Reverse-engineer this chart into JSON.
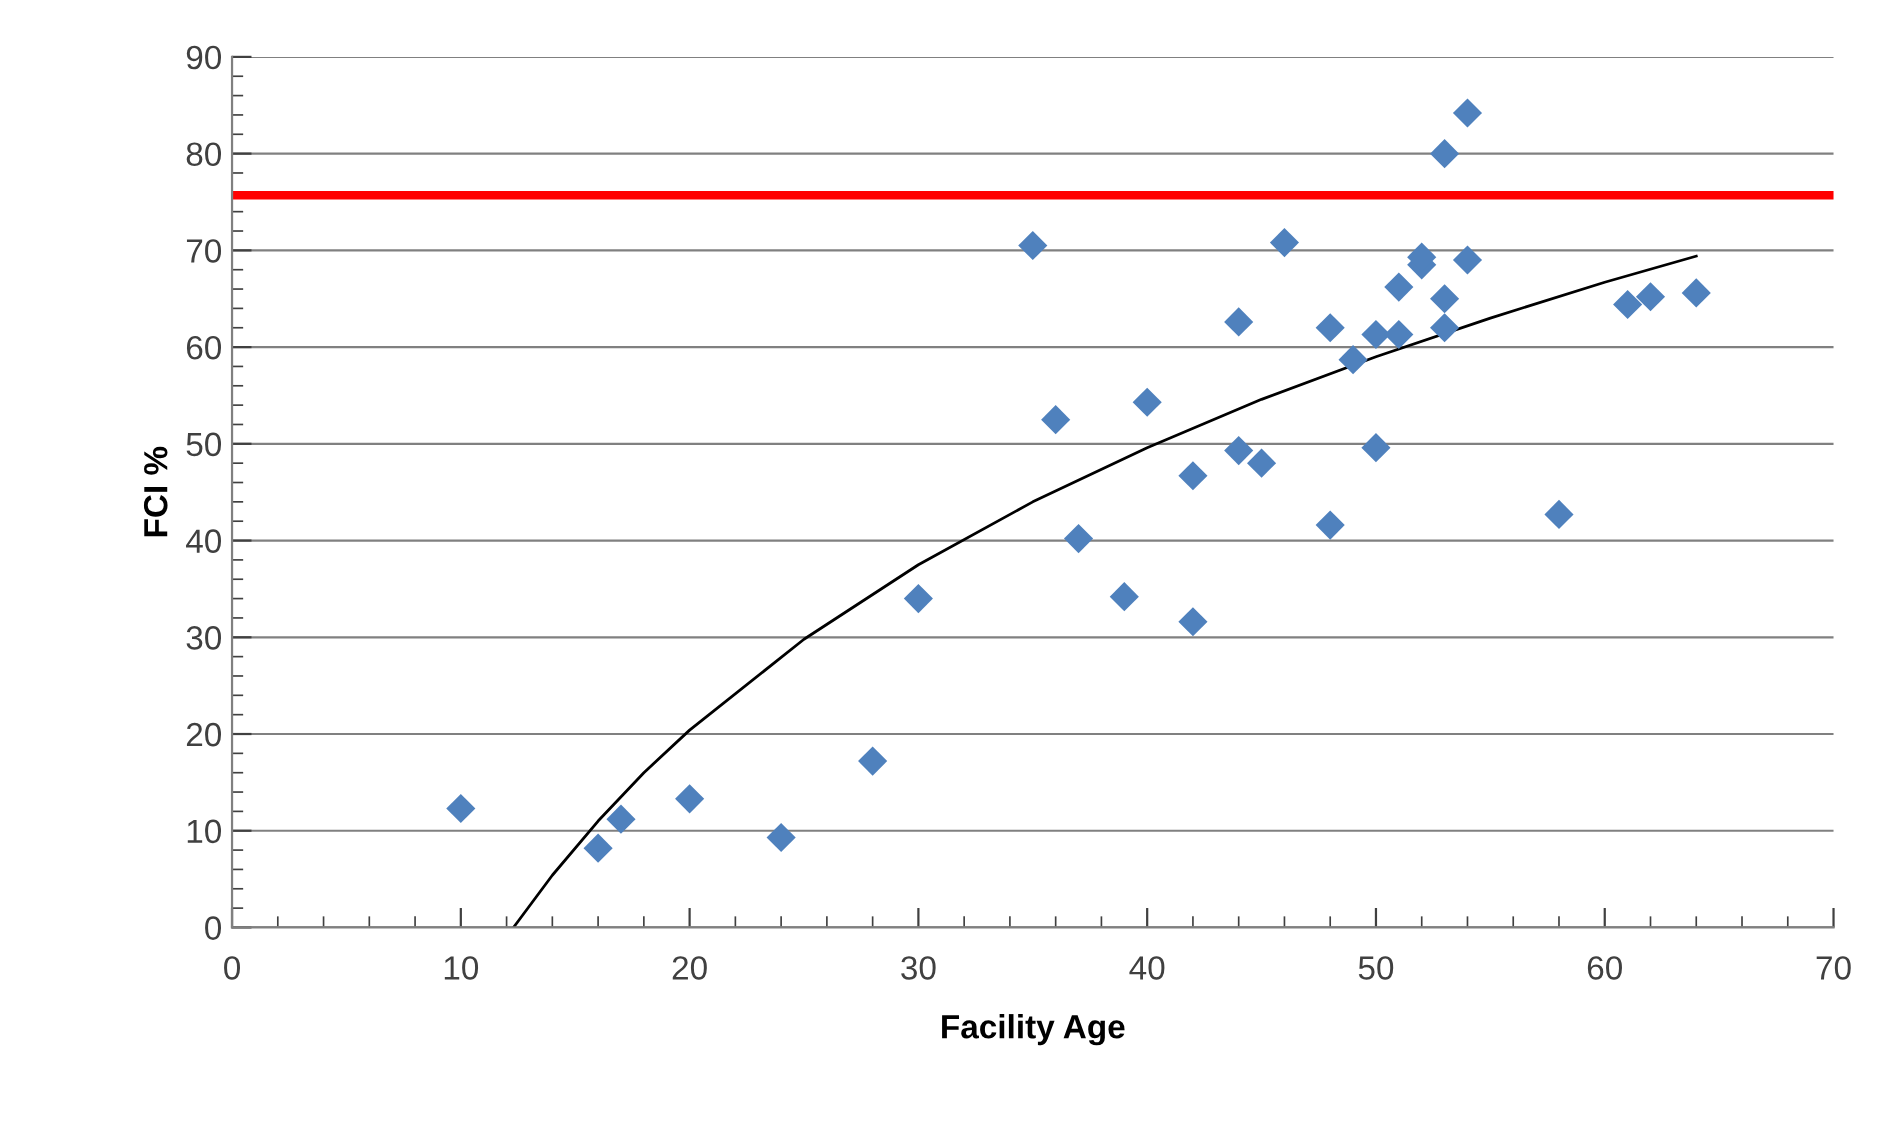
{
  "chart_data": {
    "type": "scatter",
    "xlabel": "Facility Age",
    "ylabel": "FCI %",
    "xlim": [
      0,
      70
    ],
    "xticks": [
      0,
      10,
      20,
      30,
      40,
      50,
      60,
      70
    ],
    "ylim": [
      0,
      90
    ],
    "yticks": [
      0,
      10,
      20,
      30,
      40,
      50,
      60,
      70,
      80,
      90
    ],
    "grid": "y",
    "legend": false,
    "marker": "diamond",
    "series": [
      {
        "color": "#4f81bd",
        "x": [
          10,
          16,
          17,
          20,
          24,
          28,
          30,
          35,
          36,
          37,
          39,
          40,
          42,
          42,
          44,
          44,
          45,
          46,
          48,
          48,
          49,
          50,
          50,
          51,
          51,
          52,
          52,
          53,
          53,
          53,
          54,
          54,
          58,
          61,
          62,
          64
        ],
        "values": [
          12.3,
          8.2,
          11.2,
          13.3,
          9.3,
          17.2,
          34,
          70.5,
          52.5,
          40.2,
          34.2,
          54.3,
          46.7,
          31.6,
          62.6,
          49.3,
          48,
          70.8,
          62,
          41.6,
          58.7,
          61.3,
          49.6,
          66.2,
          61.3,
          68.5,
          69.3,
          80,
          65,
          62,
          84.2,
          69,
          42.7,
          64.4,
          65.2,
          65.6
        ]
      },
      {
        "type": "line",
        "color": "#000000",
        "marker": "none",
        "x": [
          12.3,
          14,
          16,
          18,
          20,
          25,
          30,
          35,
          40,
          45,
          50,
          55,
          60,
          64
        ],
        "values": [
          0,
          5.4,
          11,
          16,
          20.4,
          29.8,
          37.5,
          44,
          49.6,
          54.6,
          59,
          63,
          66.7,
          69.4
        ]
      }
    ],
    "ref_lines": [
      {
        "axis": "y",
        "value": 75.7,
        "color": "#ff0000",
        "line_style": "solid"
      }
    ]
  }
}
